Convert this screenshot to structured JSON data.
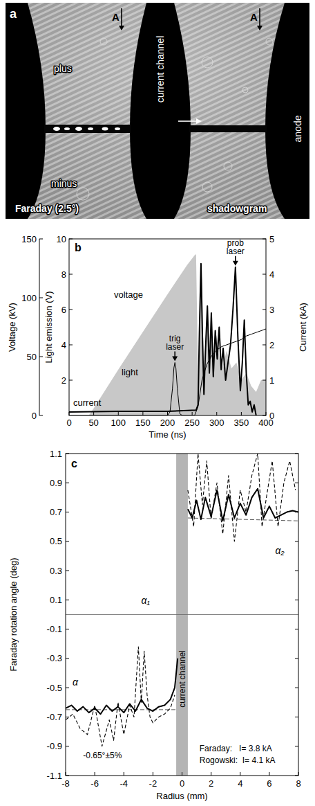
{
  "photo": {
    "label": "a",
    "left_title": "Faraday (2.5°)",
    "right_title": "shadowgram",
    "plus": "plus",
    "minus": "minus",
    "channel": "current channel",
    "anode": "anode",
    "marker": "A"
  },
  "chart_data": [
    {
      "type": "line",
      "label": "b",
      "xlabel": "Time (ns)",
      "ylabel": "Voltage (kV)",
      "y2label": "Current (kA)",
      "y3label": "Light emission (V)",
      "xlim": [
        0,
        400
      ],
      "xticks": [
        0,
        50,
        100,
        150,
        200,
        250,
        300,
        350,
        400
      ],
      "ylim": [
        0,
        150
      ],
      "yticks": [
        0,
        50,
        100,
        150
      ],
      "y2lim": [
        0,
        5
      ],
      "y2ticks": [
        0,
        1,
        2,
        3,
        4,
        5
      ],
      "y3lim": [
        0,
        10
      ],
      "y3ticks": [
        2,
        4,
        6,
        8,
        10
      ],
      "series": [
        {
          "name": "voltage",
          "type": "area",
          "color": "#c8c8c8",
          "x": [
            0,
            40,
            50,
            100,
            150,
            200,
            240,
            255,
            258,
            261,
            263,
            266,
            270,
            274,
            280,
            285,
            290,
            295,
            300,
            305,
            310,
            320,
            330,
            340,
            350,
            360,
            370,
            380,
            390,
            400
          ],
          "values": [
            0,
            0,
            6,
            39,
            71,
            103,
            128,
            136,
            137,
            60,
            4,
            100,
            118,
            35,
            88,
            42,
            72,
            45,
            68,
            50,
            38,
            55,
            40,
            45,
            30,
            36,
            25,
            20,
            30,
            30
          ]
        },
        {
          "name": "light",
          "type": "line",
          "color": "#000000",
          "line_style": "solid",
          "axis": "y3",
          "x": [
            0,
            200,
            205,
            210,
            213,
            215,
            217,
            220,
            225,
            230,
            255,
            262,
            270,
            280,
            290,
            300,
            310,
            320,
            330,
            340,
            350,
            360,
            370,
            380,
            390,
            400
          ],
          "values": [
            0,
            0,
            0.2,
            1.5,
            2.7,
            3.0,
            2.7,
            1.5,
            0.1,
            0,
            0,
            0.5,
            2.0,
            2.9,
            3.4,
            3.7,
            3.9,
            4.0,
            4.1,
            4.2,
            4.3,
            4.5,
            4.6,
            4.7,
            4.8,
            4.9
          ]
        },
        {
          "name": "current",
          "type": "line",
          "color": "#000000",
          "line_style": "solid",
          "axis": "y2",
          "x": [
            0,
            100,
            200,
            258,
            262,
            265,
            268,
            271,
            274,
            277,
            281,
            285,
            289,
            293,
            297,
            301,
            305,
            309,
            313,
            318,
            323,
            328,
            333,
            338,
            343,
            348,
            352,
            356,
            360,
            364,
            368,
            372,
            376,
            380
          ],
          "values": [
            0.1,
            0.12,
            0.12,
            0.15,
            0.3,
            2.5,
            4.3,
            2.2,
            0.6,
            1.8,
            3.1,
            1.2,
            2.9,
            1.1,
            2.4,
            1.6,
            2.5,
            1.3,
            1.9,
            1.0,
            1.5,
            2.0,
            3.0,
            4.2,
            2.2,
            0.7,
            1.5,
            2.7,
            1.2,
            0.3,
            0.4,
            0.1,
            0.3,
            0.0
          ]
        }
      ],
      "annotations": [
        {
          "text": "trig laser",
          "x": 215
        },
        {
          "text": "prob laser",
          "x": 338
        }
      ]
    },
    {
      "type": "line",
      "label": "c",
      "xlabel": "Radius (mm)",
      "ylabel": "Faraday rotation angle (deg)",
      "xlim": [
        -8,
        8
      ],
      "xticks": [
        -8,
        -6,
        -4,
        -2,
        0,
        2,
        4,
        6,
        8
      ],
      "ylim": [
        -1.1,
        1.1
      ],
      "yticks": [
        -1.1,
        -0.9,
        -0.7,
        -0.5,
        -0.3,
        -0.1,
        0.1,
        0.3,
        0.5,
        0.7,
        0.9,
        1.1
      ],
      "channel": [
        -0.4,
        0.4
      ],
      "channel_label": "current channel",
      "series": [
        {
          "name": "α",
          "color": "#000000",
          "line_style": "solid",
          "x": [
            -8,
            -7.6,
            -7.2,
            -6.8,
            -6.4,
            -6,
            -5.6,
            -5.2,
            -4.8,
            -4.4,
            -4,
            -3.6,
            -3.2,
            -2.8,
            -2.4,
            -2,
            -1.6,
            -1.2,
            -0.8,
            -0.5,
            -0.3,
            0,
            0.4,
            0.7,
            1.0,
            1.3,
            1.6,
            2.0,
            2.4,
            2.8,
            3.2,
            3.6,
            4.0,
            4.4,
            4.8,
            5.2,
            5.6,
            6.0,
            6.4,
            6.8,
            7.2,
            7.6,
            8
          ],
          "values": [
            -0.64,
            -0.62,
            -0.66,
            -0.63,
            -0.67,
            -0.64,
            -0.68,
            -0.62,
            -0.66,
            -0.63,
            -0.67,
            -0.61,
            -0.66,
            -0.58,
            -0.64,
            -0.66,
            -0.63,
            -0.62,
            -0.58,
            -0.5,
            -0.3,
            null,
            0.72,
            0.66,
            0.78,
            0.65,
            0.8,
            0.67,
            0.85,
            0.64,
            0.82,
            0.66,
            0.76,
            0.68,
            0.8,
            0.86,
            0.66,
            0.74,
            0.66,
            0.68,
            0.7,
            0.71,
            0.7
          ]
        },
        {
          "name": "α₁",
          "color": "#000000",
          "line_style": "dashed",
          "x": [
            -8,
            -7.5,
            -7,
            -6.5,
            -6,
            -5.5,
            -5,
            -4.7,
            -4.4,
            -4,
            -3.6,
            -3.3,
            -3,
            -2.8,
            -2.6,
            -2.4,
            -2.2,
            -2,
            -1.6,
            -1.2,
            -0.8,
            -0.5
          ],
          "values": [
            -0.72,
            -0.68,
            -0.78,
            -0.82,
            -0.62,
            -0.9,
            -0.72,
            -0.86,
            -0.6,
            -0.82,
            -0.62,
            -0.7,
            -0.22,
            -0.6,
            -0.25,
            -0.55,
            -0.7,
            -0.74,
            -0.7,
            -0.68,
            -0.64,
            -0.55
          ]
        },
        {
          "name": "α₂",
          "color": "#000000",
          "line_style": "dashed",
          "x": [
            0.4,
            0.8,
            1.1,
            1.4,
            1.7,
            2.0,
            2.4,
            2.8,
            3.2,
            3.6,
            4.0,
            4.4,
            4.8,
            5.2,
            5.5,
            5.8,
            6.2,
            6.6,
            7.0,
            7.4,
            7.8
          ],
          "values": [
            0.85,
            0.6,
            1.1,
            0.75,
            1.05,
            0.65,
            0.9,
            0.55,
            0.95,
            0.5,
            0.85,
            0.7,
            0.95,
            1.1,
            0.6,
            0.8,
            1.05,
            0.6,
            0.9,
            1.05,
            0.85
          ]
        }
      ],
      "reference": [
        {
          "x": [
            -8,
            -0.4
          ],
          "values": [
            -0.65,
            -0.65
          ]
        },
        {
          "x": [
            0.4,
            8
          ],
          "values": [
            0.66,
            0.64
          ]
        }
      ],
      "annotations": [
        "-0.65°±5%",
        "Faraday:   I= 3.8 kA",
        "Rogowski:  I= 4.1 kA"
      ]
    }
  ]
}
